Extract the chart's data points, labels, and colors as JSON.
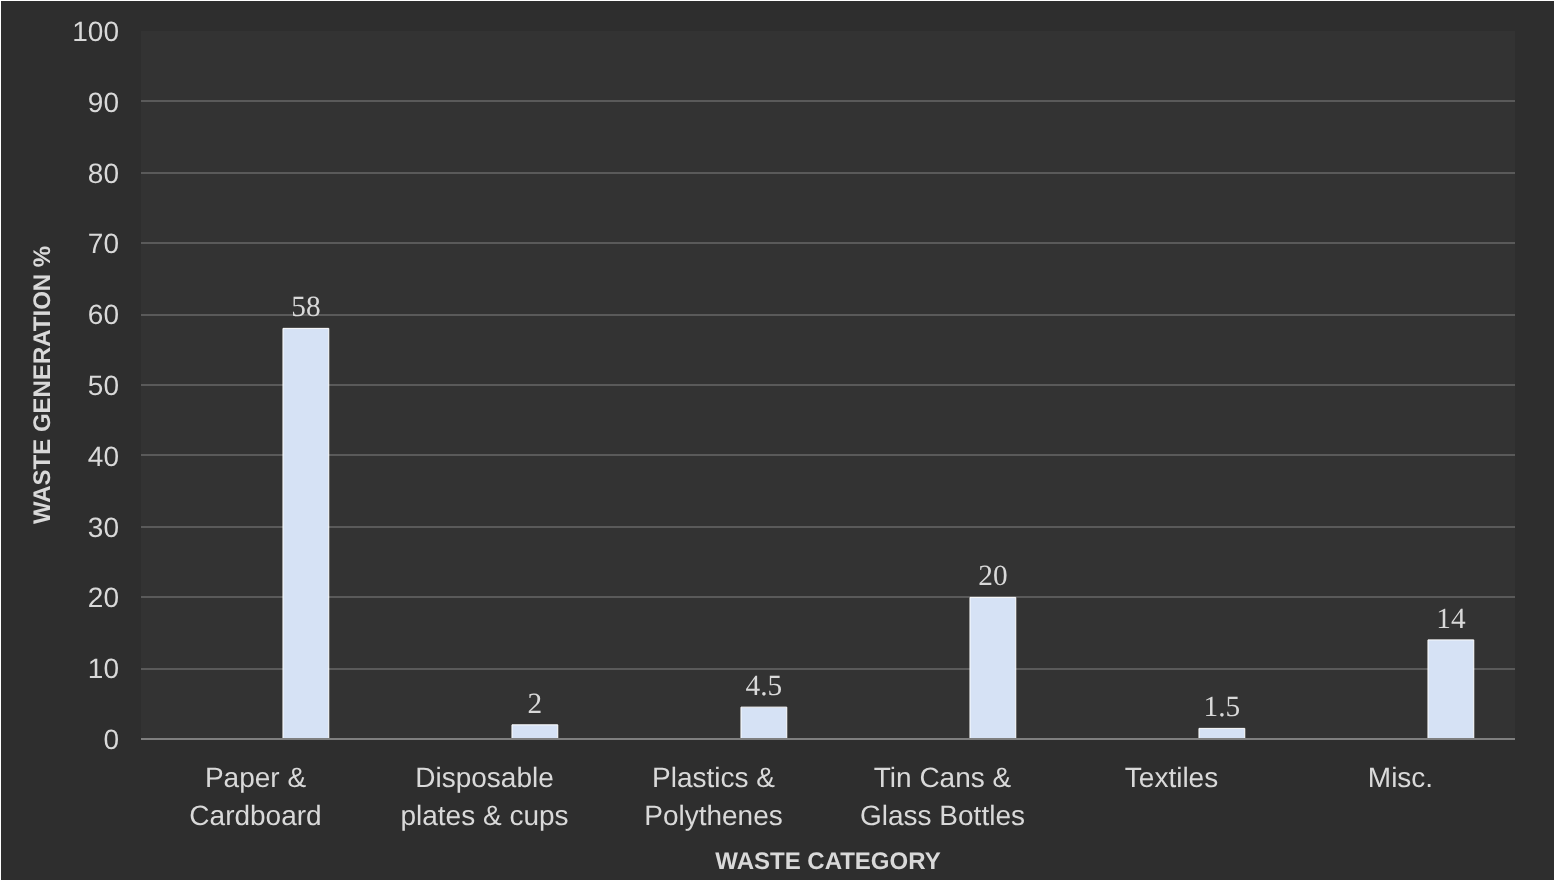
{
  "chart_data": {
    "type": "bar",
    "categories": [
      "Paper & Cardboard",
      "Disposable plates & cups",
      "Plastics & Polythenes",
      "Tin Cans & Glass Bottles",
      "Textiles",
      "Misc."
    ],
    "values": [
      58,
      2,
      4.5,
      20,
      1.5,
      14
    ],
    "color": "#d6e2f5",
    "xlabel": "WASTE CATEGORY",
    "ylabel": "WASTE GENERATION %",
    "ylim": [
      0,
      100
    ],
    "yticks": [
      0,
      10,
      20,
      30,
      40,
      50,
      60,
      70,
      80,
      90,
      100
    ],
    "grid": "y",
    "data_labels": true
  }
}
